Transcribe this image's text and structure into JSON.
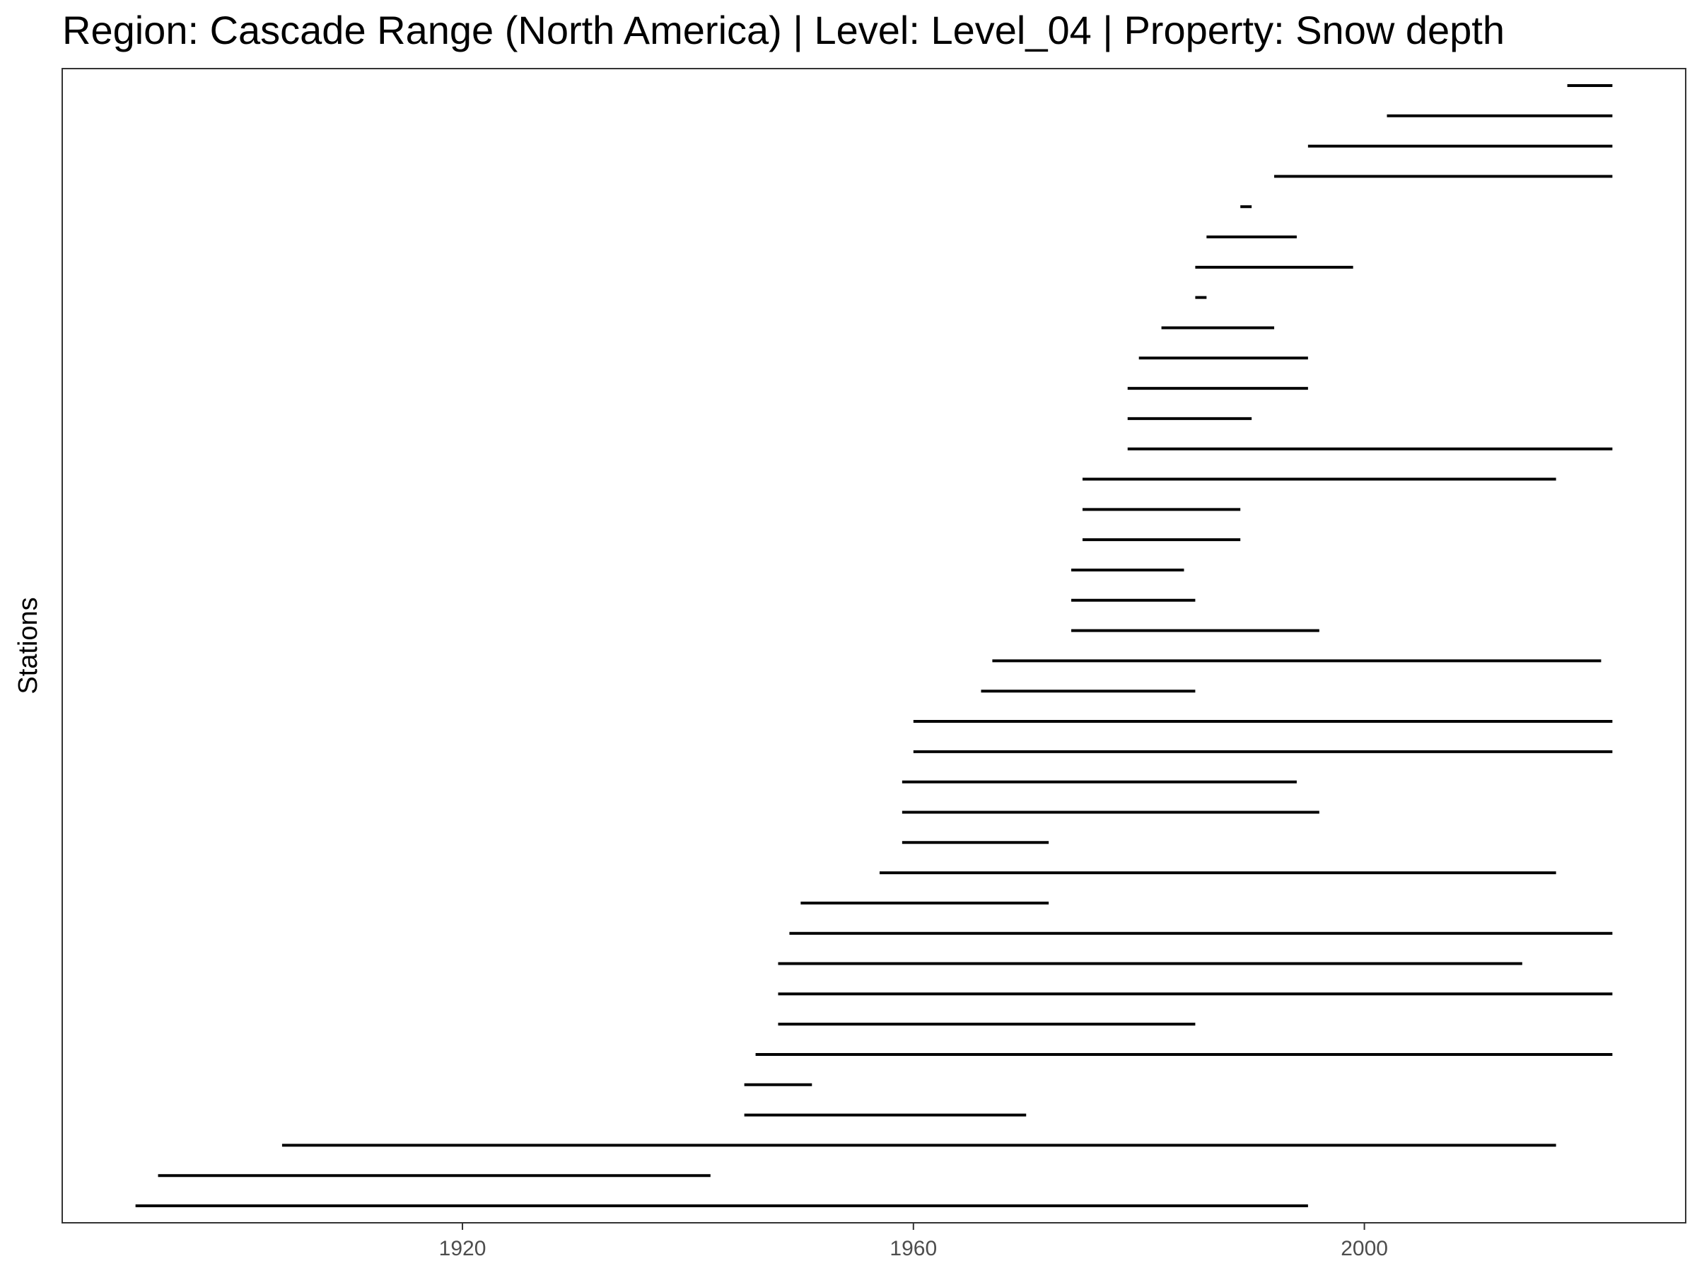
{
  "chart_data": {
    "type": "range",
    "title": "Region: Cascade Range (North America) | Level: Level_04 | Property: Snow depth",
    "xlabel": "",
    "ylabel": "Stations",
    "xlim": [
      1884.5,
      2028.5
    ],
    "x_ticks": [
      1920,
      1960,
      2000
    ],
    "grid": false,
    "line_color": "#000000",
    "segments": [
      {
        "start": 1891,
        "end": 1995
      },
      {
        "start": 1893,
        "end": 1942
      },
      {
        "start": 1904,
        "end": 2017
      },
      {
        "start": 1945,
        "end": 1970
      },
      {
        "start": 1945,
        "end": 1951
      },
      {
        "start": 1946,
        "end": 2022
      },
      {
        "start": 1948,
        "end": 1985
      },
      {
        "start": 1948,
        "end": 2022
      },
      {
        "start": 1948,
        "end": 2014
      },
      {
        "start": 1949,
        "end": 2022
      },
      {
        "start": 1950,
        "end": 1972
      },
      {
        "start": 1957,
        "end": 2017
      },
      {
        "start": 1959,
        "end": 1972
      },
      {
        "start": 1959,
        "end": 1996
      },
      {
        "start": 1959,
        "end": 1994
      },
      {
        "start": 1960,
        "end": 2022
      },
      {
        "start": 1960,
        "end": 2022
      },
      {
        "start": 1966,
        "end": 1985
      },
      {
        "start": 1967,
        "end": 2021
      },
      {
        "start": 1974,
        "end": 1996
      },
      {
        "start": 1974,
        "end": 1985
      },
      {
        "start": 1974,
        "end": 1984
      },
      {
        "start": 1975,
        "end": 1989
      },
      {
        "start": 1975,
        "end": 1989
      },
      {
        "start": 1975,
        "end": 2017
      },
      {
        "start": 1979,
        "end": 2022
      },
      {
        "start": 1979,
        "end": 1990
      },
      {
        "start": 1979,
        "end": 1995
      },
      {
        "start": 1980,
        "end": 1995
      },
      {
        "start": 1982,
        "end": 1992
      },
      {
        "start": 1985,
        "end": 1986
      },
      {
        "start": 1985,
        "end": 1999
      },
      {
        "start": 1986,
        "end": 1994
      },
      {
        "start": 1989,
        "end": 1990
      },
      {
        "start": 1992,
        "end": 2022
      },
      {
        "start": 1995,
        "end": 2022
      },
      {
        "start": 2002,
        "end": 2022
      },
      {
        "start": 2018,
        "end": 2022
      }
    ]
  }
}
